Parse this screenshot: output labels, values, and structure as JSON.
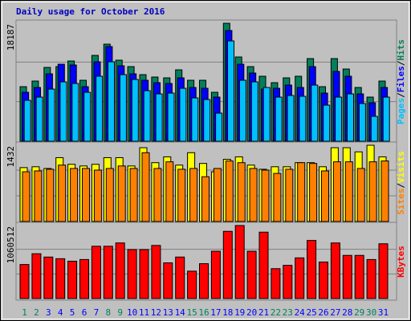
{
  "title": "Daily usage for October 2016",
  "separator": "/",
  "chart_data": [
    {
      "type": "bar",
      "ylim": [
        0,
        18187
      ],
      "series": [
        {
          "name": "Hits",
          "color": "#00805c",
          "values": [
            8412,
            9278,
            11380,
            11504,
            12370,
            9401,
            13236,
            14968,
            12494,
            11504,
            10267,
            9896,
            9772,
            11009,
            9401,
            9401,
            7546,
            18187,
            12989,
            11504,
            10020,
            9030,
            9772,
            10020,
            12741,
            8412,
            12741,
            11133,
            8288,
            6804,
            9278
          ]
        },
        {
          "name": "Files",
          "color": "#0000ff",
          "values": [
            7546,
            8288,
            10391,
            11875,
            11752,
            8412,
            12246,
            14597,
            11628,
            10391,
            9401,
            9030,
            8906,
            9772,
            8288,
            8164,
            6804,
            17071,
            11875,
            10515,
            8041,
            8164,
            8659,
            8288,
            11504,
            7422,
            10762,
            10020,
            7298,
            5938,
            8288
          ]
        },
        {
          "name": "Pages",
          "color": "#00c0ff",
          "values": [
            6309,
            6804,
            8041,
            9154,
            8906,
            7546,
            10020,
            12246,
            10267,
            9525,
            7793,
            7298,
            7422,
            8164,
            6680,
            6432,
            4330,
            15463,
            9401,
            9154,
            8288,
            6804,
            7051,
            6927,
            8659,
            5567,
            6804,
            7298,
            5814,
            3835,
            6804
          ]
        }
      ]
    },
    {
      "type": "bar",
      "ylim": [
        0,
        1432
      ],
      "series": [
        {
          "name": "Visits",
          "color": "#ffff00",
          "values": [
            1012,
            1028,
            996,
            1199,
            1074,
            1043,
            1074,
            1199,
            1199,
            1043,
            1386,
            1105,
            1214,
            1059,
            1292,
            1090,
            934,
            1168,
            1214,
            1059,
            981,
            1028,
            1028,
            1105,
            1105,
            1028,
            1386,
            1386,
            1308,
            1432,
            1214
          ]
        },
        {
          "name": "Sites",
          "color": "#ff8000",
          "values": [
            934,
            950,
            981,
            1059,
            996,
            996,
            965,
            996,
            1043,
            996,
            1292,
            996,
            1121,
            981,
            996,
            841,
            996,
            1137,
            1105,
            996,
            965,
            903,
            981,
            1105,
            1090,
            950,
            1121,
            1121,
            996,
            1121,
            1137
          ]
        }
      ]
    },
    {
      "type": "bar",
      "ylim": [
        0,
        1060512
      ],
      "series": [
        {
          "name": "KBytes",
          "color": "#ff0000",
          "values": [
            494091,
            650754,
            602550,
            578448,
            542295,
            566397,
            759213,
            759213,
            807417,
            711009,
            711009,
            771264,
            518193,
            602550,
            397683,
            506142,
            686907,
            976131,
            1060512,
            686907,
            964080,
            433836,
            482040,
            590499,
            843570,
            530244,
            807417,
            626652,
            626652,
            566397,
            795366
          ]
        }
      ],
      "categories": [
        "1",
        "2",
        "3",
        "4",
        "5",
        "6",
        "7",
        "8",
        "9",
        "10",
        "11",
        "12",
        "13",
        "14",
        "15",
        "16",
        "17",
        "18",
        "19",
        "20",
        "21",
        "22",
        "23",
        "24",
        "25",
        "26",
        "27",
        "28",
        "29",
        "30",
        "31"
      ],
      "category_colors": [
        "#00805c",
        "#00805c",
        "#0000ff",
        "#0000ff",
        "#0000ff",
        "#0000ff",
        "#0000ff",
        "#00805c",
        "#00805c",
        "#0000ff",
        "#0000ff",
        "#0000ff",
        "#0000ff",
        "#0000ff",
        "#00805c",
        "#00805c",
        "#0000ff",
        "#0000ff",
        "#0000ff",
        "#0000ff",
        "#0000ff",
        "#00805c",
        "#00805c",
        "#0000ff",
        "#0000ff",
        "#0000ff",
        "#0000ff",
        "#0000ff",
        "#00805c",
        "#00805c",
        "#0000ff"
      ]
    }
  ]
}
